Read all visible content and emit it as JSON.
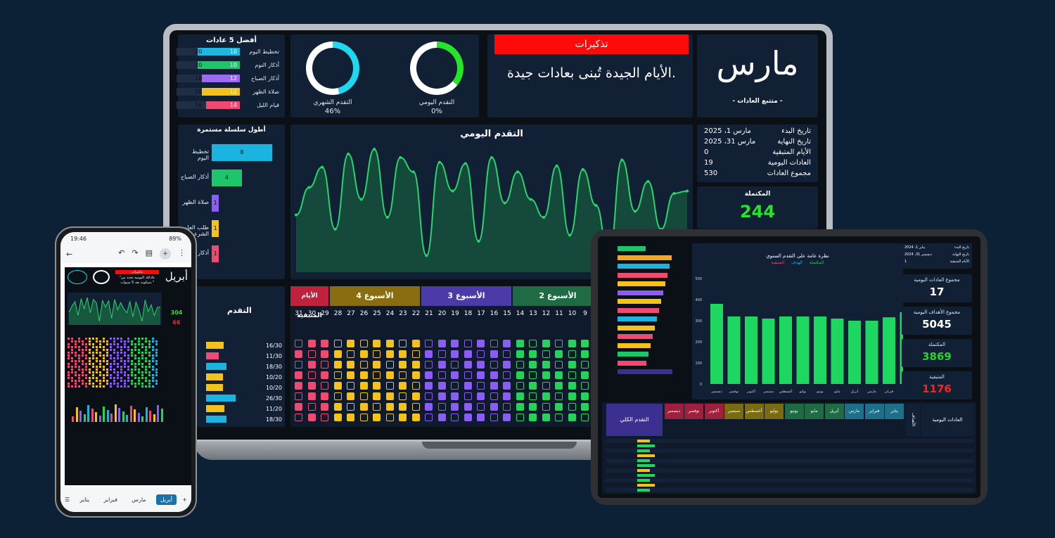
{
  "laptop": {
    "top_habits_title": "أفضل 5 عادات",
    "top_habits": [
      {
        "name": "تخطيط اليوم",
        "a": "10",
        "b": "20",
        "color": "#21b6e0",
        "fill": 0.67
      },
      {
        "name": "أذكار النوم",
        "a": "10",
        "b": "20",
        "color": "#1ec56a",
        "fill": 0.67
      },
      {
        "name": "أذكار الصباح",
        "a": "12",
        "b": "18",
        "color": "#9b6cf2",
        "fill": 0.6
      },
      {
        "name": "صلاة الظهر",
        "a": "12",
        "b": "18",
        "color": "#f5c21b",
        "fill": 0.6
      },
      {
        "name": "قيام الليل",
        "a": "14",
        "b": "16",
        "color": "#f04a73",
        "fill": 0.53
      }
    ],
    "monthly_progress_label": "التقدم الشهري",
    "monthly_progress_pct": "46%",
    "daily_progress_label": "التقدم اليومي",
    "daily_progress_pct": "0%",
    "reminders_title": "تذكيرات",
    "reminder_text": "الأيام الجيدة تُبنى بعادات جيدة.",
    "month_name": "مارس",
    "tracker_title": "- متتبع العادات -",
    "streak_title": "أطول سلسلة مستمرة",
    "streaks": [
      {
        "name": "تخطيط اليوم",
        "value": "8",
        "color": "#1bb3e0",
        "frac": 1.0
      },
      {
        "name": "أذكار الصباح",
        "value": "4",
        "color": "#1ec56a",
        "frac": 0.5
      },
      {
        "name": "صلاة الظهر",
        "value": "1",
        "color": "#8b5cf6",
        "frac": 0.12
      },
      {
        "name": "طلب العلم الشرعي",
        "value": "1",
        "color": "#f5c21b",
        "frac": 0.12
      },
      {
        "name": "أذكار",
        "value": "1",
        "color": "#f04a73",
        "frac": 0.12
      }
    ],
    "daily_chart_title": "التقدم اليومي",
    "daily_series": [
      0.42,
      0.65,
      0.82,
      0.3,
      0.93,
      0.55,
      0.97,
      0.4,
      0.9,
      0.78,
      0.08,
      0.86,
      0.62,
      0.85,
      0.2,
      0.9,
      0.52,
      0.78,
      0.55,
      0.4,
      0.83,
      0.25,
      0.8,
      0.5,
      0.08,
      0.88,
      0.45,
      0.7,
      0.3,
      0.6,
      0.62
    ],
    "info": [
      {
        "label": "تاريخ البدء",
        "value": "مارس 1، 2025"
      },
      {
        "label": "تاريخ النهاية",
        "value": "مارس 31، 2025"
      },
      {
        "label": "الأيام المتبقية",
        "value": "0"
      },
      {
        "label": "العادات اليومية",
        "value": "19"
      },
      {
        "label": "مجموع العادات",
        "value": "530"
      }
    ],
    "completed_label": "المكتملة",
    "completed_value": "244",
    "progress_label": "التقدم",
    "remaining_days_label": "الأيام المتبقية",
    "weeks": [
      {
        "label": "الأسبوع 4",
        "color": "#8a6d10"
      },
      {
        "label": "الأسبوع 3",
        "color": "#4b3aa8"
      },
      {
        "label": "الأسبوع 2",
        "color": "#1f6b43"
      }
    ],
    "days": [
      "31",
      "30",
      "29",
      "28",
      "27",
      "26",
      "25",
      "24",
      "23",
      "22",
      "21",
      "20",
      "19",
      "18",
      "17",
      "16",
      "15",
      "14",
      "13",
      "12",
      "11",
      "10",
      "9",
      "8"
    ],
    "progress_rows": [
      {
        "pct": "53%",
        "frac": "16/30",
        "color": "#f5c21b",
        "w": 0.53
      },
      {
        "pct": "37%",
        "frac": "11/30",
        "color": "#f04a73",
        "w": 0.37
      },
      {
        "pct": "60%",
        "frac": "18/30",
        "color": "#1bb3e0",
        "w": 0.6
      },
      {
        "pct": "50%",
        "frac": "10/20",
        "color": "#f5c21b",
        "w": 0.5
      },
      {
        "pct": "50%",
        "frac": "10/20",
        "color": "#f5c21b",
        "w": 0.5
      },
      {
        "pct": "87%",
        "frac": "26/30",
        "color": "#1bb3e0",
        "w": 0.87
      },
      {
        "pct": "55%",
        "frac": "11/20",
        "color": "#f5c21b",
        "w": 0.55
      },
      {
        "pct": "60%",
        "frac": "18/30",
        "color": "#1bb3e0",
        "w": 0.6
      }
    ]
  },
  "tablet": {
    "chart_title": "نظرة عامة على التقدم السنوي",
    "legend": [
      "المتبقية",
      "الهدف",
      "المكتملة"
    ],
    "months": [
      "يناير",
      "فبراير",
      "مارس",
      "أبريل",
      "مايو",
      "يونيو",
      "يوليو",
      "أغسطس",
      "سبتمبر",
      "أكتوبر",
      "نوفمبر",
      "ديسمبر"
    ],
    "values": [
      340,
      316,
      300,
      300,
      310,
      320,
      320,
      320,
      310,
      320,
      320,
      380
    ],
    "ylim": [
      0,
      500
    ],
    "kpis": [
      {
        "label": "مجموع العادات اليومية",
        "value": "17",
        "color": "#ffffff"
      },
      {
        "label": "مجموع الأهداف اليومية",
        "value": "5045",
        "color": "#ffffff"
      },
      {
        "label": "المكتملة",
        "value": "3869",
        "color": "#25d52b"
      },
      {
        "label": "المتبقية",
        "value": "1176",
        "color": "#ff2020"
      }
    ],
    "overall_progress": "التقدم الكلي",
    "daily_habits": "العادات اليومية",
    "goals": "الأهداف",
    "info": [
      {
        "label": "تاريخ البدء",
        "value": "يناير 1، 2024"
      },
      {
        "label": "تاريخ النهاية",
        "value": "ديسمبر 31، 2024"
      },
      {
        "label": "الأيام المتبقية",
        "value": "1"
      }
    ],
    "month_colors": [
      "#1d6f8a",
      "#1d6f8a",
      "#1d6f8a",
      "#1f6b43",
      "#1f6b43",
      "#1f6b43",
      "#7a6a10",
      "#7a6a10",
      "#7a6a10",
      "#a01f3d",
      "#a01f3d",
      "#a01f3d"
    ]
  },
  "phone": {
    "time": "19:46",
    "battery": "89%",
    "month_name": "أبريل",
    "reminders_title": "تذكيرات",
    "reminder_text": "\"عاداتك اليومية تحدد من ستكونه بعد 5 سنوات.\"",
    "completed_value": "304",
    "remaining_value": "66",
    "sheet_tabs": [
      "أبريل",
      "مارس",
      "فبراير",
      "يناير"
    ]
  }
}
